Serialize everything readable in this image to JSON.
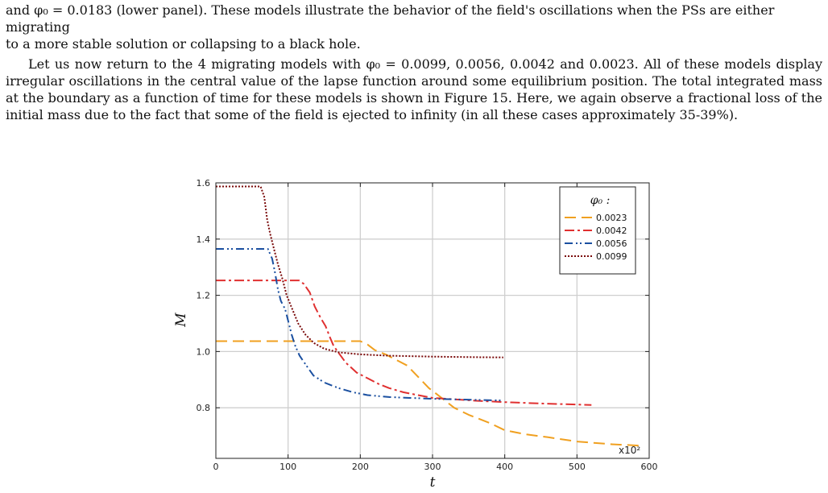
{
  "text": {
    "p1_line1": "and φ₀ = 0.0183 (lower panel). These models illustrate the behavior of the field's oscillations when the PSs are either migrating",
    "p1_line2": "to a more stable solution or collapsing to a black hole.",
    "p2_line1": "Let us now return to the 4 migrating models with φ₀ = 0.0099, 0.0056, 0.0042 and 0.0023. All of these models",
    "p2_line2": "display irregular oscillations in the central value of the lapse function around some equilibrium position. The total",
    "p2_line3": "integrated mass at the boundary as a function of time for these models is shown in Figure 15. Here, we again observe",
    "p2_line4": "a fractional loss of the initial mass due to the fact that some of the field is ejected to infinity (in all these cases",
    "p2_line5": "approximately 35-39%)."
  },
  "chart_data": {
    "type": "line",
    "xlabel": "t",
    "ylabel": "M",
    "x_multiplier_label": "x10²",
    "xlim": [
      0,
      600
    ],
    "ylim": [
      0.62,
      1.6
    ],
    "xticks": [
      0,
      100,
      200,
      300,
      400,
      500,
      600
    ],
    "yticks": [
      0.8,
      1.0,
      1.2,
      1.4,
      1.6
    ],
    "grid": true,
    "legend": {
      "title": "φ₀ :",
      "placement": "top-right"
    },
    "series": [
      {
        "name": "0.0023",
        "color": "#f0a020",
        "dash": "14,7",
        "points": [
          [
            0,
            1.037
          ],
          [
            200,
            1.037
          ],
          [
            210,
            1.025
          ],
          [
            220,
            1.005
          ],
          [
            235,
            0.99
          ],
          [
            250,
            0.97
          ],
          [
            265,
            0.95
          ],
          [
            280,
            0.91
          ],
          [
            295,
            0.87
          ],
          [
            310,
            0.84
          ],
          [
            330,
            0.8
          ],
          [
            350,
            0.775
          ],
          [
            380,
            0.745
          ],
          [
            400,
            0.72
          ],
          [
            430,
            0.705
          ],
          [
            460,
            0.695
          ],
          [
            500,
            0.68
          ],
          [
            550,
            0.67
          ],
          [
            590,
            0.665
          ]
        ]
      },
      {
        "name": "0.0042",
        "color": "#e03030",
        "dash": "12,4,3,4",
        "points": [
          [
            0,
            1.253
          ],
          [
            115,
            1.253
          ],
          [
            122,
            1.24
          ],
          [
            130,
            1.21
          ],
          [
            137,
            1.16
          ],
          [
            145,
            1.12
          ],
          [
            152,
            1.09
          ],
          [
            158,
            1.05
          ],
          [
            163,
            1.02
          ],
          [
            170,
            0.995
          ],
          [
            180,
            0.96
          ],
          [
            195,
            0.925
          ],
          [
            210,
            0.905
          ],
          [
            225,
            0.885
          ],
          [
            240,
            0.87
          ],
          [
            260,
            0.855
          ],
          [
            280,
            0.845
          ],
          [
            300,
            0.835
          ],
          [
            330,
            0.83
          ],
          [
            360,
            0.825
          ],
          [
            400,
            0.82
          ],
          [
            450,
            0.815
          ],
          [
            520,
            0.81
          ]
        ]
      },
      {
        "name": "0.0056",
        "color": "#1a4fa0",
        "dash": "10,4,2,3,2,4",
        "points": [
          [
            0,
            1.365
          ],
          [
            72,
            1.365
          ],
          [
            78,
            1.33
          ],
          [
            82,
            1.28
          ],
          [
            86,
            1.22
          ],
          [
            90,
            1.18
          ],
          [
            96,
            1.15
          ],
          [
            101,
            1.1
          ],
          [
            105,
            1.06
          ],
          [
            110,
            1.02
          ],
          [
            116,
            0.985
          ],
          [
            124,
            0.955
          ],
          [
            135,
            0.915
          ],
          [
            150,
            0.89
          ],
          [
            170,
            0.87
          ],
          [
            190,
            0.855
          ],
          [
            210,
            0.845
          ],
          [
            240,
            0.838
          ],
          [
            270,
            0.835
          ],
          [
            300,
            0.832
          ],
          [
            330,
            0.83
          ],
          [
            360,
            0.828
          ],
          [
            395,
            0.826
          ]
        ]
      },
      {
        "name": "0.0099",
        "color": "#7a0a0a",
        "dash": "2,2",
        "points": [
          [
            0,
            1.587
          ],
          [
            62,
            1.587
          ],
          [
            67,
            1.55
          ],
          [
            71,
            1.47
          ],
          [
            75,
            1.42
          ],
          [
            80,
            1.37
          ],
          [
            86,
            1.31
          ],
          [
            92,
            1.26
          ],
          [
            98,
            1.2
          ],
          [
            106,
            1.15
          ],
          [
            114,
            1.1
          ],
          [
            124,
            1.06
          ],
          [
            136,
            1.03
          ],
          [
            150,
            1.01
          ],
          [
            170,
            0.997
          ],
          [
            200,
            0.99
          ],
          [
            240,
            0.985
          ],
          [
            300,
            0.982
          ],
          [
            360,
            0.98
          ],
          [
            398,
            0.979
          ]
        ]
      }
    ]
  }
}
